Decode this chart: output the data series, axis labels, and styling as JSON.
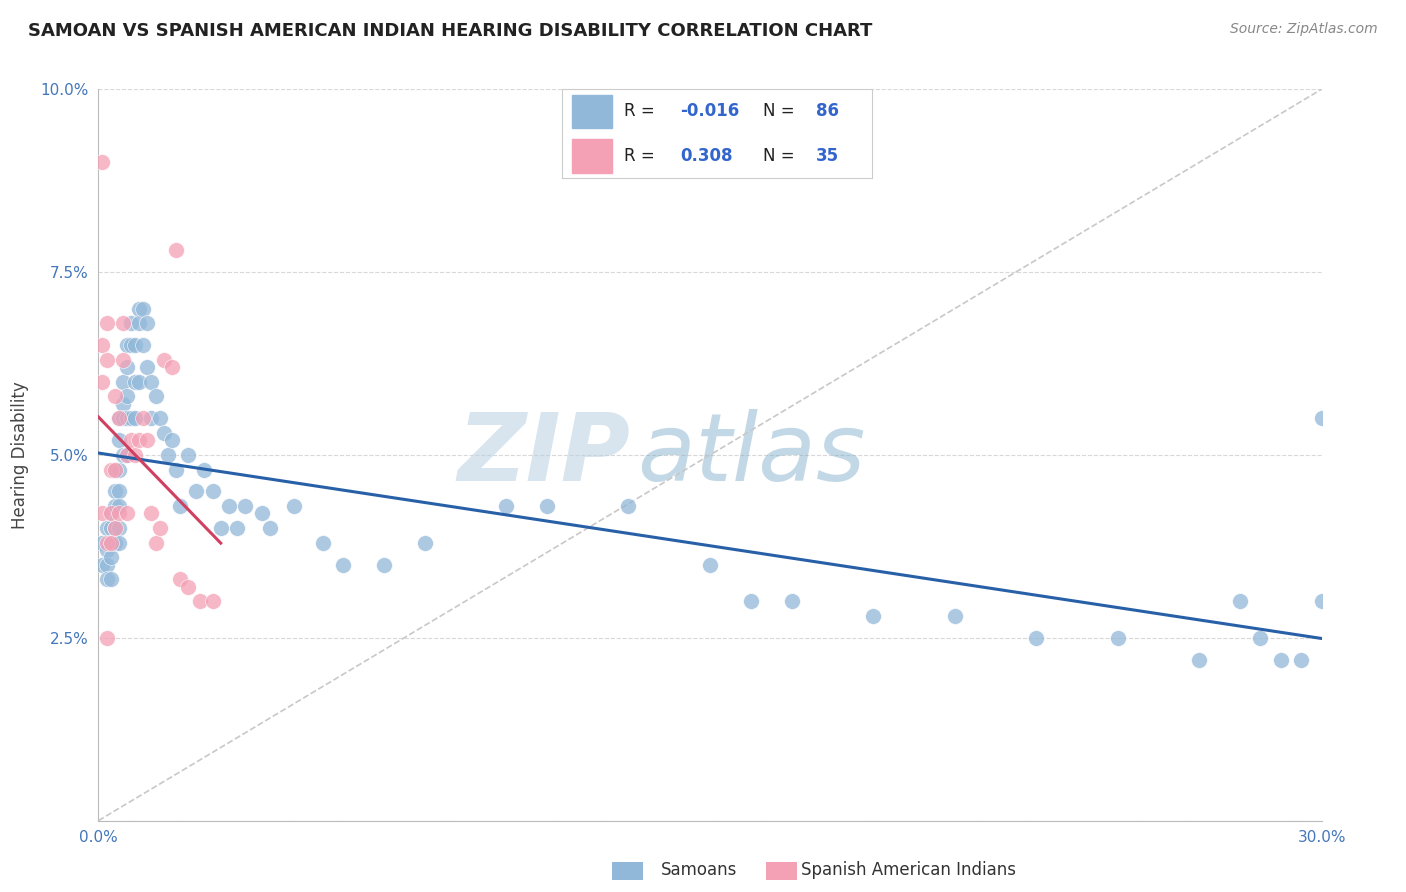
{
  "title": "SAMOAN VS SPANISH AMERICAN INDIAN HEARING DISABILITY CORRELATION CHART",
  "source": "Source: ZipAtlas.com",
  "xlabel_samoan": "Samoans",
  "xlabel_spanish": "Spanish American Indians",
  "ylabel": "Hearing Disability",
  "xlim": [
    0,
    0.3
  ],
  "ylim": [
    0,
    0.1
  ],
  "color_samoan": "#92b8d9",
  "color_spanish": "#f4a0b5",
  "color_samoan_line": "#2860a8",
  "color_spanish_line": "#d04060",
  "color_diag_line": "#c8c8c8",
  "background": "#ffffff",
  "watermark_zip": "ZIP",
  "watermark_atlas": "atlas",
  "samoan_x": [
    0.001,
    0.001,
    0.002,
    0.002,
    0.002,
    0.002,
    0.003,
    0.003,
    0.003,
    0.003,
    0.003,
    0.004,
    0.004,
    0.004,
    0.004,
    0.004,
    0.005,
    0.005,
    0.005,
    0.005,
    0.005,
    0.005,
    0.005,
    0.006,
    0.006,
    0.006,
    0.006,
    0.007,
    0.007,
    0.007,
    0.007,
    0.007,
    0.008,
    0.008,
    0.008,
    0.009,
    0.009,
    0.009,
    0.01,
    0.01,
    0.01,
    0.011,
    0.011,
    0.012,
    0.012,
    0.013,
    0.013,
    0.014,
    0.015,
    0.016,
    0.017,
    0.018,
    0.019,
    0.02,
    0.022,
    0.024,
    0.026,
    0.028,
    0.03,
    0.032,
    0.034,
    0.036,
    0.04,
    0.042,
    0.048,
    0.055,
    0.06,
    0.07,
    0.08,
    0.1,
    0.11,
    0.13,
    0.15,
    0.16,
    0.17,
    0.19,
    0.21,
    0.23,
    0.25,
    0.27,
    0.28,
    0.285,
    0.29,
    0.295,
    0.3,
    0.3
  ],
  "samoan_y": [
    0.038,
    0.035,
    0.04,
    0.037,
    0.035,
    0.033,
    0.042,
    0.04,
    0.038,
    0.036,
    0.033,
    0.048,
    0.045,
    0.043,
    0.04,
    0.038,
    0.055,
    0.052,
    0.048,
    0.045,
    0.043,
    0.04,
    0.038,
    0.06,
    0.057,
    0.055,
    0.05,
    0.065,
    0.062,
    0.058,
    0.055,
    0.05,
    0.068,
    0.065,
    0.055,
    0.065,
    0.06,
    0.055,
    0.07,
    0.068,
    0.06,
    0.07,
    0.065,
    0.068,
    0.062,
    0.06,
    0.055,
    0.058,
    0.055,
    0.053,
    0.05,
    0.052,
    0.048,
    0.043,
    0.05,
    0.045,
    0.048,
    0.045,
    0.04,
    0.043,
    0.04,
    0.043,
    0.042,
    0.04,
    0.043,
    0.038,
    0.035,
    0.035,
    0.038,
    0.043,
    0.043,
    0.043,
    0.035,
    0.03,
    0.03,
    0.028,
    0.028,
    0.025,
    0.025,
    0.022,
    0.03,
    0.025,
    0.022,
    0.022,
    0.03,
    0.055
  ],
  "spanish_x": [
    0.001,
    0.001,
    0.001,
    0.001,
    0.002,
    0.002,
    0.002,
    0.002,
    0.003,
    0.003,
    0.003,
    0.004,
    0.004,
    0.004,
    0.005,
    0.005,
    0.006,
    0.006,
    0.007,
    0.007,
    0.008,
    0.009,
    0.01,
    0.011,
    0.012,
    0.013,
    0.014,
    0.015,
    0.016,
    0.018,
    0.019,
    0.02,
    0.022,
    0.025,
    0.028
  ],
  "spanish_y": [
    0.09,
    0.065,
    0.06,
    0.042,
    0.068,
    0.063,
    0.038,
    0.025,
    0.048,
    0.042,
    0.038,
    0.058,
    0.048,
    0.04,
    0.055,
    0.042,
    0.068,
    0.063,
    0.05,
    0.042,
    0.052,
    0.05,
    0.052,
    0.055,
    0.052,
    0.042,
    0.038,
    0.04,
    0.063,
    0.062,
    0.078,
    0.033,
    0.032,
    0.03,
    0.03
  ]
}
